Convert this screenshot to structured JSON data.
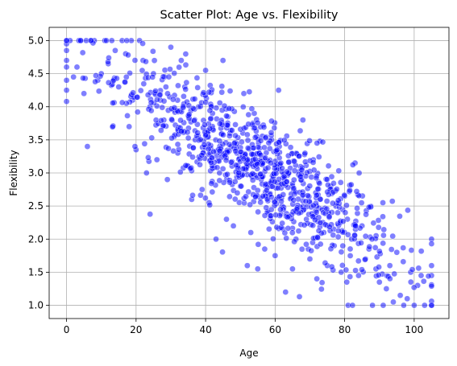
{
  "chart_data": {
    "type": "scatter",
    "title": "Scatter Plot: Age vs. Flexibility",
    "xlabel": "Age",
    "ylabel": "Flexibility",
    "xlim": [
      -5,
      110
    ],
    "ylim": [
      0.8,
      5.2
    ],
    "xticks": [
      0,
      20,
      40,
      60,
      80,
      100
    ],
    "yticks": [
      1.0,
      1.5,
      2.0,
      2.5,
      3.0,
      3.5,
      4.0,
      4.5,
      5.0
    ],
    "grid": true,
    "legend": "none",
    "point_color": "#0000ff",
    "point_alpha": 0.5,
    "point_edge_color": "#ffffff",
    "n_points": 1000,
    "trend": {
      "slope": -0.0342,
      "intercept": 4.96,
      "noise_sd": 0.42
    },
    "points": [
      [
        0,
        5.0
      ],
      [
        0,
        4.85
      ],
      [
        0,
        4.6
      ],
      [
        0,
        4.4
      ],
      [
        0,
        4.25
      ],
      [
        0,
        4.08
      ],
      [
        0,
        4.95
      ],
      [
        0,
        4.7
      ],
      [
        1,
        5.0
      ],
      [
        2,
        4.45
      ],
      [
        3,
        4.6
      ],
      [
        4,
        5.0
      ],
      [
        5,
        4.2
      ],
      [
        6,
        3.4
      ],
      [
        7,
        5.0
      ],
      [
        8,
        5.0
      ],
      [
        9,
        4.4
      ],
      [
        10,
        4.5
      ],
      [
        11,
        5.0
      ],
      [
        12,
        4.65
      ],
      [
        14,
        4.85
      ],
      [
        15,
        4.3
      ],
      [
        16,
        5.0
      ],
      [
        17,
        4.8
      ],
      [
        18,
        3.7
      ],
      [
        19,
        4.1
      ],
      [
        20,
        3.35
      ],
      [
        21,
        5.0
      ],
      [
        22,
        4.7
      ],
      [
        23,
        3.0
      ],
      [
        24,
        4.0
      ],
      [
        25,
        4.5
      ],
      [
        26,
        3.2
      ],
      [
        27,
        4.1
      ],
      [
        28,
        3.8
      ],
      [
        29,
        2.9
      ],
      [
        30,
        4.9
      ],
      [
        31,
        3.55
      ],
      [
        32,
        3.3
      ],
      [
        33,
        4.7
      ],
      [
        34,
        4.3
      ],
      [
        35,
        3.1
      ],
      [
        36,
        2.6
      ],
      [
        37,
        3.5
      ],
      [
        38,
        4.0
      ],
      [
        39,
        2.75
      ],
      [
        40,
        4.55
      ],
      [
        41,
        2.55
      ],
      [
        42,
        3.9
      ],
      [
        43,
        2.0
      ],
      [
        44,
        3.0
      ],
      [
        45,
        4.7
      ],
      [
        46,
        2.3
      ],
      [
        47,
        3.6
      ],
      [
        48,
        2.2
      ],
      [
        49,
        3.3
      ],
      [
        50,
        2.8
      ],
      [
        51,
        4.2
      ],
      [
        52,
        1.6
      ],
      [
        53,
        2.1
      ],
      [
        54,
        3.9
      ],
      [
        55,
        1.55
      ],
      [
        56,
        2.9
      ],
      [
        57,
        1.85
      ],
      [
        58,
        2.4
      ],
      [
        59,
        3.5
      ],
      [
        60,
        1.75
      ],
      [
        61,
        4.25
      ],
      [
        62,
        2.5
      ],
      [
        63,
        1.2
      ],
      [
        64,
        3.0
      ],
      [
        65,
        1.55
      ],
      [
        66,
        2.0
      ],
      [
        67,
        1.13
      ],
      [
        68,
        3.8
      ],
      [
        69,
        2.3
      ],
      [
        70,
        1.7
      ],
      [
        71,
        3.2
      ],
      [
        72,
        1.4
      ],
      [
        73,
        2.6
      ],
      [
        74,
        2.1
      ],
      [
        75,
        1.6
      ],
      [
        76,
        2.8
      ],
      [
        77,
        1.9
      ],
      [
        78,
        2.4
      ],
      [
        79,
        1.5
      ],
      [
        80,
        2.65
      ],
      [
        81,
        1.0
      ],
      [
        82,
        2.0
      ],
      [
        83,
        3.15
      ],
      [
        84,
        1.45
      ],
      [
        85,
        2.2
      ],
      [
        86,
        1.7
      ],
      [
        87,
        1.85
      ],
      [
        88,
        1.0
      ],
      [
        89,
        1.55
      ],
      [
        90,
        1.35
      ],
      [
        91,
        2.55
      ],
      [
        92,
        1.25
      ],
      [
        93,
        1.6
      ],
      [
        94,
        1.05
      ],
      [
        95,
        1.8
      ],
      [
        96,
        1.15
      ],
      [
        97,
        1.0
      ],
      [
        98,
        1.1
      ],
      [
        99,
        1.5
      ],
      [
        100,
        1.0
      ],
      [
        101,
        1.3
      ],
      [
        102,
        1.45
      ],
      [
        103,
        1.0
      ],
      [
        105,
        2.0
      ],
      [
        105,
        1.6
      ],
      [
        105,
        1.45
      ],
      [
        105,
        1.0
      ]
    ]
  }
}
